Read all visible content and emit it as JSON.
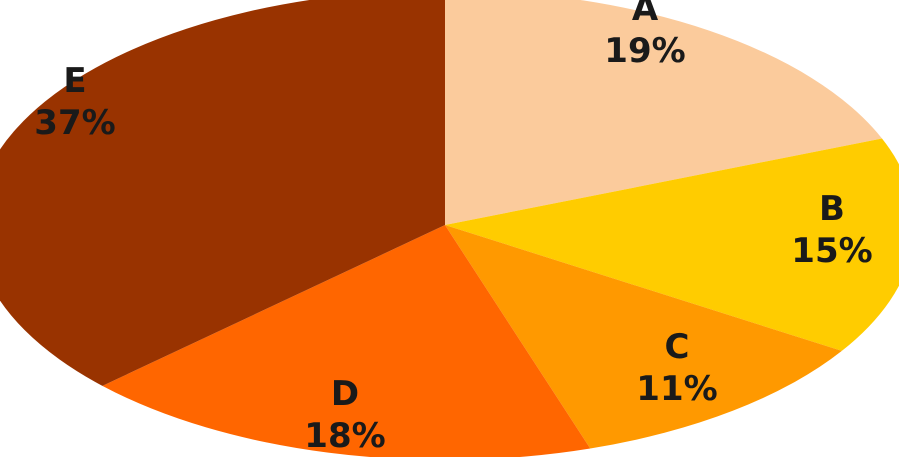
{
  "chart_data": {
    "type": "pie",
    "title": "",
    "slices": [
      {
        "label": "A",
        "value": 19,
        "percent_label": "19%",
        "color": "#FBCB9C"
      },
      {
        "label": "B",
        "value": 15,
        "percent_label": "15%",
        "color": "#FFCC00"
      },
      {
        "label": "C",
        "value": 11,
        "percent_label": "11%",
        "color": "#FF9900"
      },
      {
        "label": "D",
        "value": 18,
        "percent_label": "18%",
        "color": "#FF6600"
      },
      {
        "label": "E",
        "value": 37,
        "percent_label": "37%",
        "color": "#993300"
      }
    ],
    "legend": "none",
    "start": "12 o'clock",
    "direction": "clockwise"
  }
}
